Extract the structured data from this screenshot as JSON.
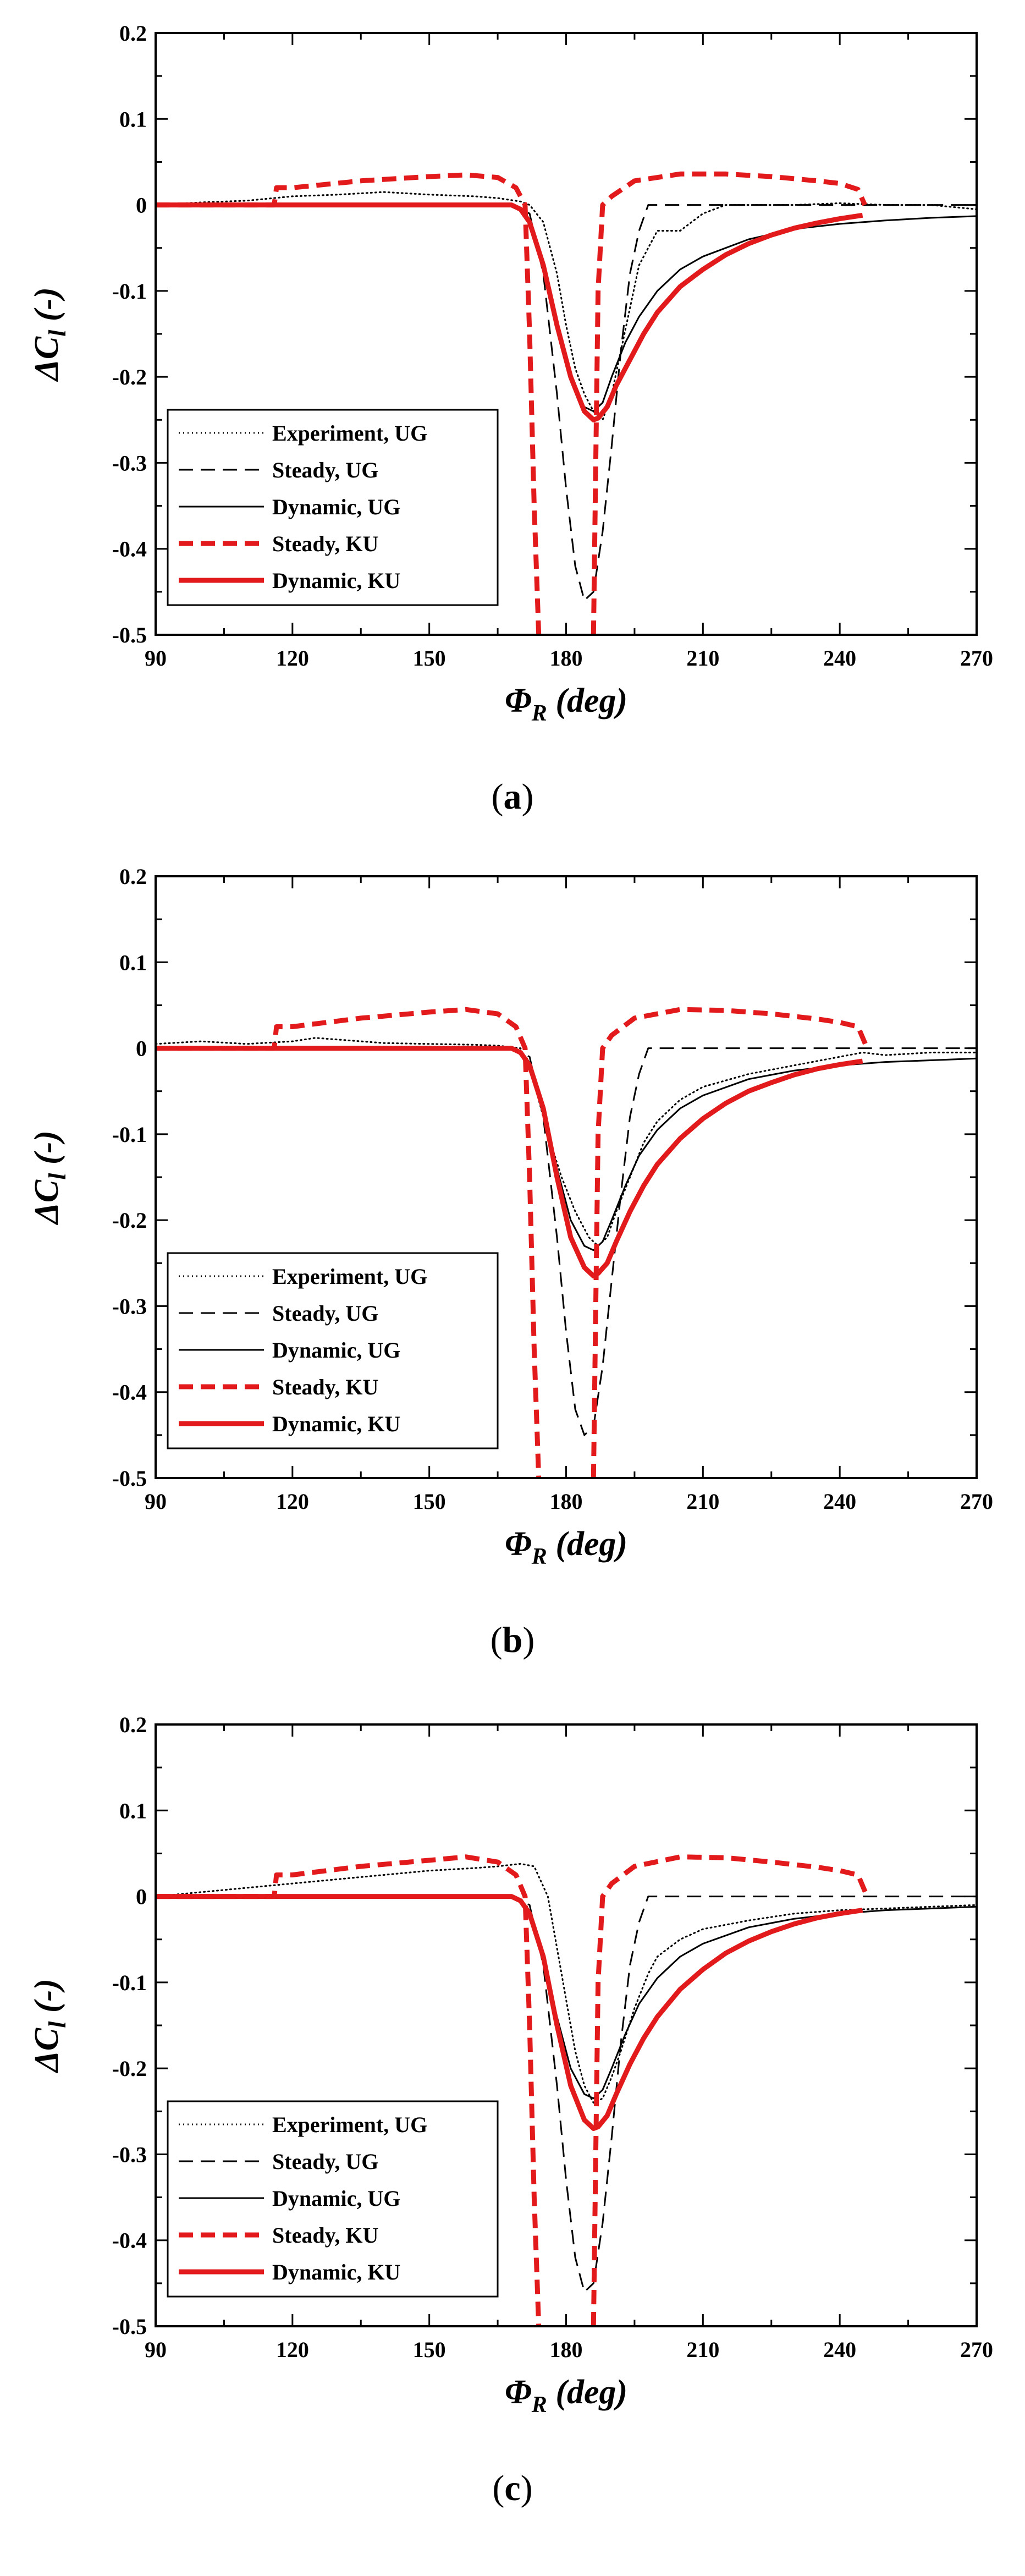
{
  "chart_data": [
    {
      "type": "line",
      "panel": "a",
      "xlabel": "Φ_R (deg)",
      "ylabel": "ΔC_l (-)",
      "xlim": [
        90,
        270
      ],
      "ylim": [
        -0.5,
        0.2
      ],
      "xticks": [
        90,
        120,
        150,
        180,
        210,
        240,
        270
      ],
      "yticks": [
        0.2,
        0.1,
        0,
        -0.1,
        -0.2,
        -0.3,
        -0.4,
        -0.5
      ],
      "xtick_labels": [
        "90",
        "120",
        "150",
        "180",
        "210",
        "240",
        "270"
      ],
      "ytick_labels": [
        "0.2",
        "0.1",
        "0",
        "-0.1",
        "-0.2",
        "-0.3",
        "-0.4",
        "-0.5"
      ],
      "legend": [
        "Experiment, UG",
        "Steady, UG",
        "Dynamic, UG",
        "Steady, KU",
        "Dynamic, KU"
      ],
      "series": [
        {
          "name": "Experiment, UG",
          "color": "#000000",
          "style": "dotted",
          "x": [
            90,
            100,
            110,
            120,
            130,
            140,
            150,
            160,
            165,
            170,
            172,
            175,
            178,
            180,
            182,
            184,
            186,
            188,
            190,
            192,
            194,
            196,
            198,
            200,
            205,
            210,
            215,
            220,
            230,
            240,
            250,
            260,
            270
          ],
          "y": [
            0,
            0.003,
            0.005,
            0.01,
            0.012,
            0.015,
            0.012,
            0.01,
            0.008,
            0.004,
            0.0,
            -0.02,
            -0.08,
            -0.14,
            -0.19,
            -0.22,
            -0.24,
            -0.25,
            -0.22,
            -0.17,
            -0.12,
            -0.07,
            -0.05,
            -0.03,
            -0.03,
            -0.01,
            0.0,
            0.0,
            0.0,
            0.002,
            0.0,
            0.0,
            -0.005
          ]
        },
        {
          "name": "Steady, UG",
          "color": "#000000",
          "style": "dashed",
          "x": [
            90,
            120,
            150,
            168,
            172,
            175,
            178,
            180,
            182,
            184,
            186,
            188,
            190,
            192,
            194,
            196,
            198,
            200,
            210,
            230,
            250,
            270
          ],
          "y": [
            0,
            0,
            0,
            0,
            -0.01,
            -0.08,
            -0.22,
            -0.33,
            -0.42,
            -0.46,
            -0.45,
            -0.38,
            -0.28,
            -0.17,
            -0.08,
            -0.03,
            0.0,
            0.0,
            0.0,
            0.0,
            0.0,
            0.0
          ]
        },
        {
          "name": "Dynamic, UG",
          "color": "#000000",
          "style": "solid",
          "x": [
            90,
            120,
            150,
            168,
            170,
            172,
            175,
            178,
            181,
            184,
            186,
            188,
            190,
            193,
            196,
            200,
            205,
            210,
            220,
            230,
            240,
            250,
            260,
            270
          ],
          "y": [
            0,
            0,
            0,
            0,
            -0.005,
            -0.02,
            -0.07,
            -0.14,
            -0.2,
            -0.235,
            -0.24,
            -0.23,
            -0.2,
            -0.16,
            -0.13,
            -0.1,
            -0.075,
            -0.06,
            -0.04,
            -0.028,
            -0.022,
            -0.018,
            -0.015,
            -0.013
          ]
        },
        {
          "name": "Steady, KU",
          "color": "#e31a1c",
          "style": "dashed",
          "x": [
            90,
            100,
            116,
            116.5,
            120,
            135,
            150,
            158,
            165,
            169,
            171,
            172,
            173,
            174
          ],
          "y": [
            0,
            0,
            0,
            0.02,
            0.02,
            0.028,
            0.033,
            0.035,
            0.032,
            0.02,
            0.0,
            -0.15,
            -0.35,
            -0.5
          ],
          "x2": [
            186,
            186.5,
            187,
            188,
            190,
            195,
            205,
            215,
            225,
            235,
            240,
            244,
            245.5
          ],
          "y2": [
            -0.5,
            -0.3,
            -0.1,
            0.0,
            0.01,
            0.028,
            0.036,
            0.036,
            0.033,
            0.028,
            0.025,
            0.018,
            0.0
          ]
        },
        {
          "name": "Dynamic, KU",
          "color": "#e31a1c",
          "style": "solid",
          "x": [
            90,
            120,
            150,
            168,
            170,
            172,
            175,
            178,
            181,
            184,
            186,
            187,
            189,
            191,
            194,
            197,
            200,
            205,
            210,
            215,
            220,
            225,
            230,
            235,
            240,
            245
          ],
          "y": [
            0,
            0,
            0,
            0,
            -0.005,
            -0.02,
            -0.07,
            -0.14,
            -0.2,
            -0.24,
            -0.25,
            -0.248,
            -0.235,
            -0.21,
            -0.18,
            -0.15,
            -0.125,
            -0.095,
            -0.075,
            -0.058,
            -0.045,
            -0.035,
            -0.027,
            -0.021,
            -0.016,
            -0.012
          ]
        }
      ]
    },
    {
      "type": "line",
      "panel": "b",
      "xlabel": "Φ_R (deg)",
      "ylabel": "ΔC_l (-)",
      "xlim": [
        90,
        270
      ],
      "ylim": [
        -0.5,
        0.2
      ],
      "xticks": [
        90,
        120,
        150,
        180,
        210,
        240,
        270
      ],
      "yticks": [
        0.2,
        0.1,
        0,
        -0.1,
        -0.2,
        -0.3,
        -0.4,
        -0.5
      ],
      "xtick_labels": [
        "90",
        "120",
        "150",
        "180",
        "210",
        "240",
        "270"
      ],
      "ytick_labels": [
        "0.2",
        "0.1",
        "0",
        "-0.1",
        "-0.2",
        "-0.3",
        "-0.4",
        "-0.5"
      ],
      "legend": [
        "Experiment, UG",
        "Steady, UG",
        "Dynamic, UG",
        "Steady, KU",
        "Dynamic, KU"
      ],
      "series": [
        {
          "name": "Experiment, UG",
          "color": "#000000",
          "style": "dotted",
          "x": [
            90,
            100,
            110,
            120,
            125,
            130,
            140,
            150,
            160,
            165,
            170,
            173,
            176,
            179,
            182,
            185,
            187,
            189,
            191,
            194,
            197,
            200,
            205,
            210,
            220,
            230,
            240,
            245,
            250,
            260,
            270
          ],
          "y": [
            0.005,
            0.008,
            0.005,
            0.008,
            0.012,
            0.01,
            0.006,
            0.005,
            0.004,
            0.003,
            0.0,
            -0.04,
            -0.1,
            -0.15,
            -0.19,
            -0.22,
            -0.23,
            -0.22,
            -0.19,
            -0.15,
            -0.11,
            -0.085,
            -0.06,
            -0.045,
            -0.03,
            -0.02,
            -0.01,
            -0.005,
            -0.008,
            -0.005,
            -0.005
          ]
        },
        {
          "name": "Steady, UG",
          "color": "#000000",
          "style": "dashed",
          "x": [
            90,
            120,
            150,
            168,
            172,
            175,
            178,
            180,
            182,
            184,
            186,
            188,
            190,
            192,
            194,
            196,
            198,
            200,
            210,
            230,
            250,
            270
          ],
          "y": [
            0,
            0,
            0,
            0,
            -0.01,
            -0.08,
            -0.22,
            -0.33,
            -0.42,
            -0.45,
            -0.44,
            -0.37,
            -0.27,
            -0.17,
            -0.08,
            -0.03,
            0.0,
            0.0,
            0.0,
            0.0,
            0.0,
            0.0
          ]
        },
        {
          "name": "Dynamic, UG",
          "color": "#000000",
          "style": "solid",
          "x": [
            90,
            120,
            150,
            168,
            170,
            172,
            175,
            178,
            181,
            184,
            186,
            188,
            190,
            193,
            196,
            200,
            205,
            210,
            220,
            230,
            240,
            250,
            260,
            270
          ],
          "y": [
            0,
            0,
            0,
            0,
            -0.005,
            -0.02,
            -0.07,
            -0.14,
            -0.2,
            -0.23,
            -0.235,
            -0.225,
            -0.2,
            -0.16,
            -0.125,
            -0.095,
            -0.07,
            -0.055,
            -0.036,
            -0.026,
            -0.02,
            -0.016,
            -0.014,
            -0.012
          ]
        },
        {
          "name": "Steady, KU",
          "color": "#e31a1c",
          "style": "dashed",
          "x": [
            90,
            100,
            116,
            116.5,
            120,
            135,
            150,
            158,
            165,
            169,
            171,
            172,
            173,
            174
          ],
          "y": [
            0,
            0,
            0,
            0.025,
            0.025,
            0.035,
            0.042,
            0.045,
            0.04,
            0.025,
            0.0,
            -0.15,
            -0.35,
            -0.5
          ],
          "x2": [
            186,
            186.5,
            187,
            188,
            190,
            195,
            205,
            215,
            225,
            235,
            240,
            244,
            246
          ],
          "y2": [
            -0.5,
            -0.3,
            -0.1,
            0.0,
            0.015,
            0.035,
            0.045,
            0.044,
            0.04,
            0.034,
            0.03,
            0.025,
            0.0
          ]
        },
        {
          "name": "Dynamic, KU",
          "color": "#e31a1c",
          "style": "solid",
          "x": [
            90,
            120,
            150,
            168,
            170,
            172,
            175,
            178,
            181,
            184,
            186,
            187,
            189,
            191,
            194,
            197,
            200,
            205,
            210,
            215,
            220,
            225,
            230,
            235,
            240,
            245
          ],
          "y": [
            0,
            0,
            0,
            0,
            -0.005,
            -0.02,
            -0.07,
            -0.15,
            -0.22,
            -0.255,
            -0.265,
            -0.262,
            -0.25,
            -0.225,
            -0.19,
            -0.16,
            -0.135,
            -0.105,
            -0.082,
            -0.064,
            -0.05,
            -0.04,
            -0.031,
            -0.024,
            -0.019,
            -0.015
          ]
        }
      ]
    },
    {
      "type": "line",
      "panel": "c",
      "xlabel": "Φ_R (deg)",
      "ylabel": "ΔC_l (-)",
      "xlim": [
        90,
        270
      ],
      "ylim": [
        -0.5,
        0.2
      ],
      "xticks": [
        90,
        120,
        150,
        180,
        210,
        240,
        270
      ],
      "yticks": [
        0.2,
        0.1,
        0,
        -0.1,
        -0.2,
        -0.3,
        -0.4,
        -0.5
      ],
      "xtick_labels": [
        "90",
        "120",
        "150",
        "180",
        "210",
        "240",
        "270"
      ],
      "ytick_labels": [
        "0.2",
        "0.1",
        "0",
        "-0.1",
        "-0.2",
        "-0.3",
        "-0.4",
        "-0.5"
      ],
      "legend": [
        "Experiment, UG",
        "Steady, UG",
        "Dynamic, UG",
        "Steady, KU",
        "Dynamic, KU"
      ],
      "series": [
        {
          "name": "Experiment, UG",
          "color": "#000000",
          "style": "dotted",
          "x": [
            90,
            100,
            110,
            120,
            130,
            140,
            150,
            160,
            165,
            170,
            173,
            176,
            178,
            180,
            182,
            184,
            186,
            188,
            190,
            192,
            195,
            198,
            200,
            205,
            210,
            220,
            230,
            240,
            250,
            260,
            270
          ],
          "y": [
            0,
            0.005,
            0.01,
            0.015,
            0.02,
            0.025,
            0.03,
            0.033,
            0.035,
            0.038,
            0.035,
            0.0,
            -0.06,
            -0.12,
            -0.18,
            -0.22,
            -0.24,
            -0.235,
            -0.21,
            -0.18,
            -0.13,
            -0.09,
            -0.07,
            -0.05,
            -0.038,
            -0.028,
            -0.02,
            -0.016,
            -0.014,
            -0.012,
            -0.01
          ]
        },
        {
          "name": "Steady, UG",
          "color": "#000000",
          "style": "dashed",
          "x": [
            90,
            120,
            150,
            168,
            172,
            175,
            178,
            180,
            182,
            184,
            186,
            188,
            190,
            192,
            194,
            196,
            198,
            200,
            210,
            230,
            250,
            270
          ],
          "y": [
            0,
            0,
            0,
            0,
            -0.01,
            -0.08,
            -0.22,
            -0.33,
            -0.42,
            -0.46,
            -0.45,
            -0.38,
            -0.28,
            -0.17,
            -0.08,
            -0.03,
            0.0,
            0.0,
            0.0,
            0.0,
            0.0,
            0.0
          ]
        },
        {
          "name": "Dynamic, UG",
          "color": "#000000",
          "style": "solid",
          "x": [
            90,
            120,
            150,
            168,
            170,
            172,
            175,
            178,
            181,
            184,
            186,
            188,
            190,
            193,
            196,
            200,
            205,
            210,
            220,
            230,
            240,
            250,
            260,
            270
          ],
          "y": [
            0,
            0,
            0,
            0,
            -0.005,
            -0.02,
            -0.07,
            -0.14,
            -0.2,
            -0.23,
            -0.235,
            -0.225,
            -0.2,
            -0.16,
            -0.125,
            -0.095,
            -0.07,
            -0.055,
            -0.036,
            -0.026,
            -0.02,
            -0.016,
            -0.014,
            -0.012
          ]
        },
        {
          "name": "Steady, KU",
          "color": "#e31a1c",
          "style": "dashed",
          "x": [
            90,
            100,
            116,
            116.5,
            120,
            135,
            150,
            158,
            165,
            169,
            171,
            172,
            173,
            174
          ],
          "y": [
            0,
            0,
            0,
            0.025,
            0.025,
            0.035,
            0.042,
            0.046,
            0.04,
            0.025,
            0.0,
            -0.15,
            -0.35,
            -0.5
          ],
          "x2": [
            186,
            186.5,
            187,
            188,
            190,
            195,
            205,
            215,
            225,
            235,
            240,
            244,
            246
          ],
          "y2": [
            -0.5,
            -0.3,
            -0.1,
            0.0,
            0.015,
            0.035,
            0.046,
            0.045,
            0.04,
            0.034,
            0.03,
            0.025,
            0.0
          ]
        },
        {
          "name": "Dynamic, KU",
          "color": "#e31a1c",
          "style": "solid",
          "x": [
            90,
            120,
            150,
            168,
            170,
            172,
            175,
            178,
            181,
            184,
            186,
            187,
            189,
            191,
            194,
            197,
            200,
            205,
            210,
            215,
            220,
            225,
            230,
            235,
            240,
            245
          ],
          "y": [
            0,
            0,
            0,
            0,
            -0.005,
            -0.02,
            -0.07,
            -0.15,
            -0.22,
            -0.26,
            -0.27,
            -0.268,
            -0.255,
            -0.23,
            -0.195,
            -0.165,
            -0.14,
            -0.108,
            -0.085,
            -0.066,
            -0.052,
            -0.041,
            -0.032,
            -0.025,
            -0.02,
            -0.016
          ]
        }
      ]
    }
  ],
  "captions": [
    "a",
    "b",
    "c"
  ]
}
